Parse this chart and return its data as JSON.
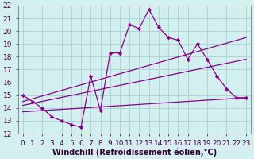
{
  "xlabel": "Windchill (Refroidissement éolien,°C)",
  "ylabel": "",
  "xlim": [
    -0.5,
    23.5
  ],
  "ylim": [
    12,
    22
  ],
  "xticks": [
    0,
    1,
    2,
    3,
    4,
    5,
    6,
    7,
    8,
    9,
    10,
    11,
    12,
    13,
    14,
    15,
    16,
    17,
    18,
    19,
    20,
    21,
    22,
    23
  ],
  "yticks": [
    12,
    13,
    14,
    15,
    16,
    17,
    18,
    19,
    20,
    21,
    22
  ],
  "background_color": "#d4efef",
  "grid_color": "#aed4d4",
  "line_color": "#880088",
  "series1_x": [
    0,
    1,
    2,
    3,
    4,
    5,
    6,
    7,
    8,
    9,
    10,
    11,
    12,
    13,
    14,
    15,
    16,
    17,
    18,
    19,
    20,
    21,
    22,
    23
  ],
  "series1_y": [
    15.0,
    14.5,
    14.0,
    13.3,
    13.0,
    12.7,
    12.5,
    16.5,
    13.8,
    18.3,
    18.3,
    20.5,
    20.2,
    21.7,
    20.3,
    19.5,
    19.3,
    17.8,
    19.0,
    17.8,
    16.5,
    15.5,
    14.8,
    14.8
  ],
  "series2_x": [
    0,
    23
  ],
  "series2_y": [
    14.5,
    19.5
  ],
  "series3_x": [
    0,
    23
  ],
  "series3_y": [
    14.2,
    17.8
  ],
  "series4_x": [
    0,
    23
  ],
  "series4_y": [
    13.7,
    14.8
  ],
  "tick_fontsize": 6.5,
  "xlabel_fontsize": 7
}
